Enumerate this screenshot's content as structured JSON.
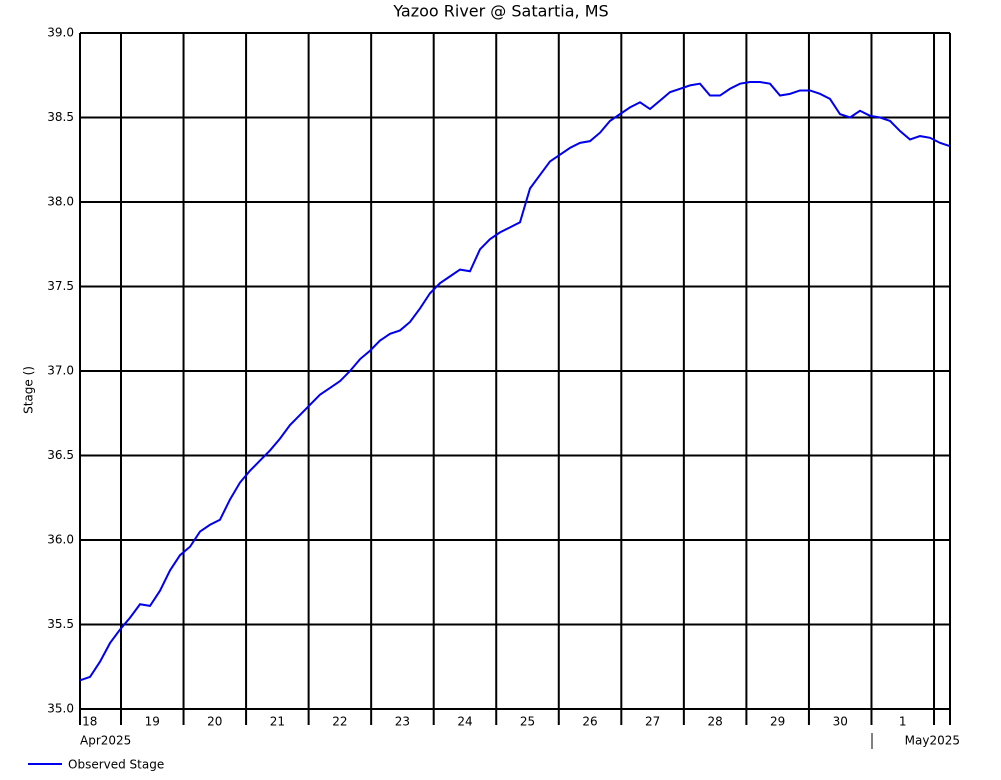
{
  "chart_data": {
    "type": "line",
    "title": "Yazoo River @ Satartia, MS",
    "y_label": "Stage ()",
    "xlim": [
      "2025-04-18T08:16",
      "2025-05-02T06:08"
    ],
    "xticks": [
      {
        "value": "2025-04-18",
        "label": "18"
      },
      {
        "value": "2025-04-19",
        "label": "19"
      },
      {
        "value": "2025-04-20",
        "label": "20"
      },
      {
        "value": "2025-04-21",
        "label": "21"
      },
      {
        "value": "2025-04-22",
        "label": "22"
      },
      {
        "value": "2025-04-23",
        "label": "23"
      },
      {
        "value": "2025-04-24",
        "label": "24"
      },
      {
        "value": "2025-04-25",
        "label": "25"
      },
      {
        "value": "2025-04-26",
        "label": "26"
      },
      {
        "value": "2025-04-27",
        "label": "27"
      },
      {
        "value": "2025-04-28",
        "label": "28"
      },
      {
        "value": "2025-04-29",
        "label": "29"
      },
      {
        "value": "2025-04-30",
        "label": "30"
      },
      {
        "value": "2025-05-01",
        "label": "1"
      }
    ],
    "month_labels": [
      "Apr2025",
      "May2025"
    ],
    "ylim": [
      35,
      39
    ],
    "yticks": [
      {
        "value": 35,
        "label": "35.0"
      },
      {
        "value": 35.5,
        "label": "35.5"
      },
      {
        "value": 36,
        "label": "36.0"
      },
      {
        "value": 36.5,
        "label": "36.5"
      },
      {
        "value": 37,
        "label": "37.0"
      },
      {
        "value": 37.5,
        "label": "37.5"
      },
      {
        "value": 38,
        "label": "38.0"
      },
      {
        "value": 38.5,
        "label": "38.5"
      },
      {
        "value": 39,
        "label": "39.0"
      }
    ],
    "grid": true,
    "series": [
      {
        "name": "Observed Stage",
        "color": "#0000ee",
        "values": [
          35.17,
          35.19,
          35.28,
          35.39,
          35.47,
          35.54,
          35.62,
          35.61,
          35.7,
          35.82,
          35.91,
          35.96,
          36.05,
          36.09,
          36.12,
          36.24,
          36.34,
          36.41,
          36.47,
          36.53,
          36.6,
          36.68,
          36.74,
          36.8,
          36.86,
          36.9,
          36.94,
          37.0,
          37.07,
          37.12,
          37.18,
          37.22,
          37.24,
          37.29,
          37.37,
          37.46,
          37.52,
          37.56,
          37.6,
          37.59,
          37.72,
          37.78,
          37.82,
          37.85,
          37.88,
          38.08,
          38.16,
          38.24,
          38.28,
          38.32,
          38.35,
          38.36,
          38.41,
          38.48,
          38.52,
          38.56,
          38.59,
          38.55,
          38.6,
          38.65,
          38.67,
          38.69,
          38.7,
          38.63,
          38.63,
          38.67,
          38.7,
          38.71,
          38.71,
          38.7,
          38.63,
          38.64,
          38.66,
          38.66,
          38.64,
          38.61,
          38.52,
          38.5,
          38.54,
          38.51,
          38.5,
          38.48,
          38.42,
          38.37,
          38.39,
          38.38,
          38.35,
          38.33
        ]
      }
    ]
  }
}
